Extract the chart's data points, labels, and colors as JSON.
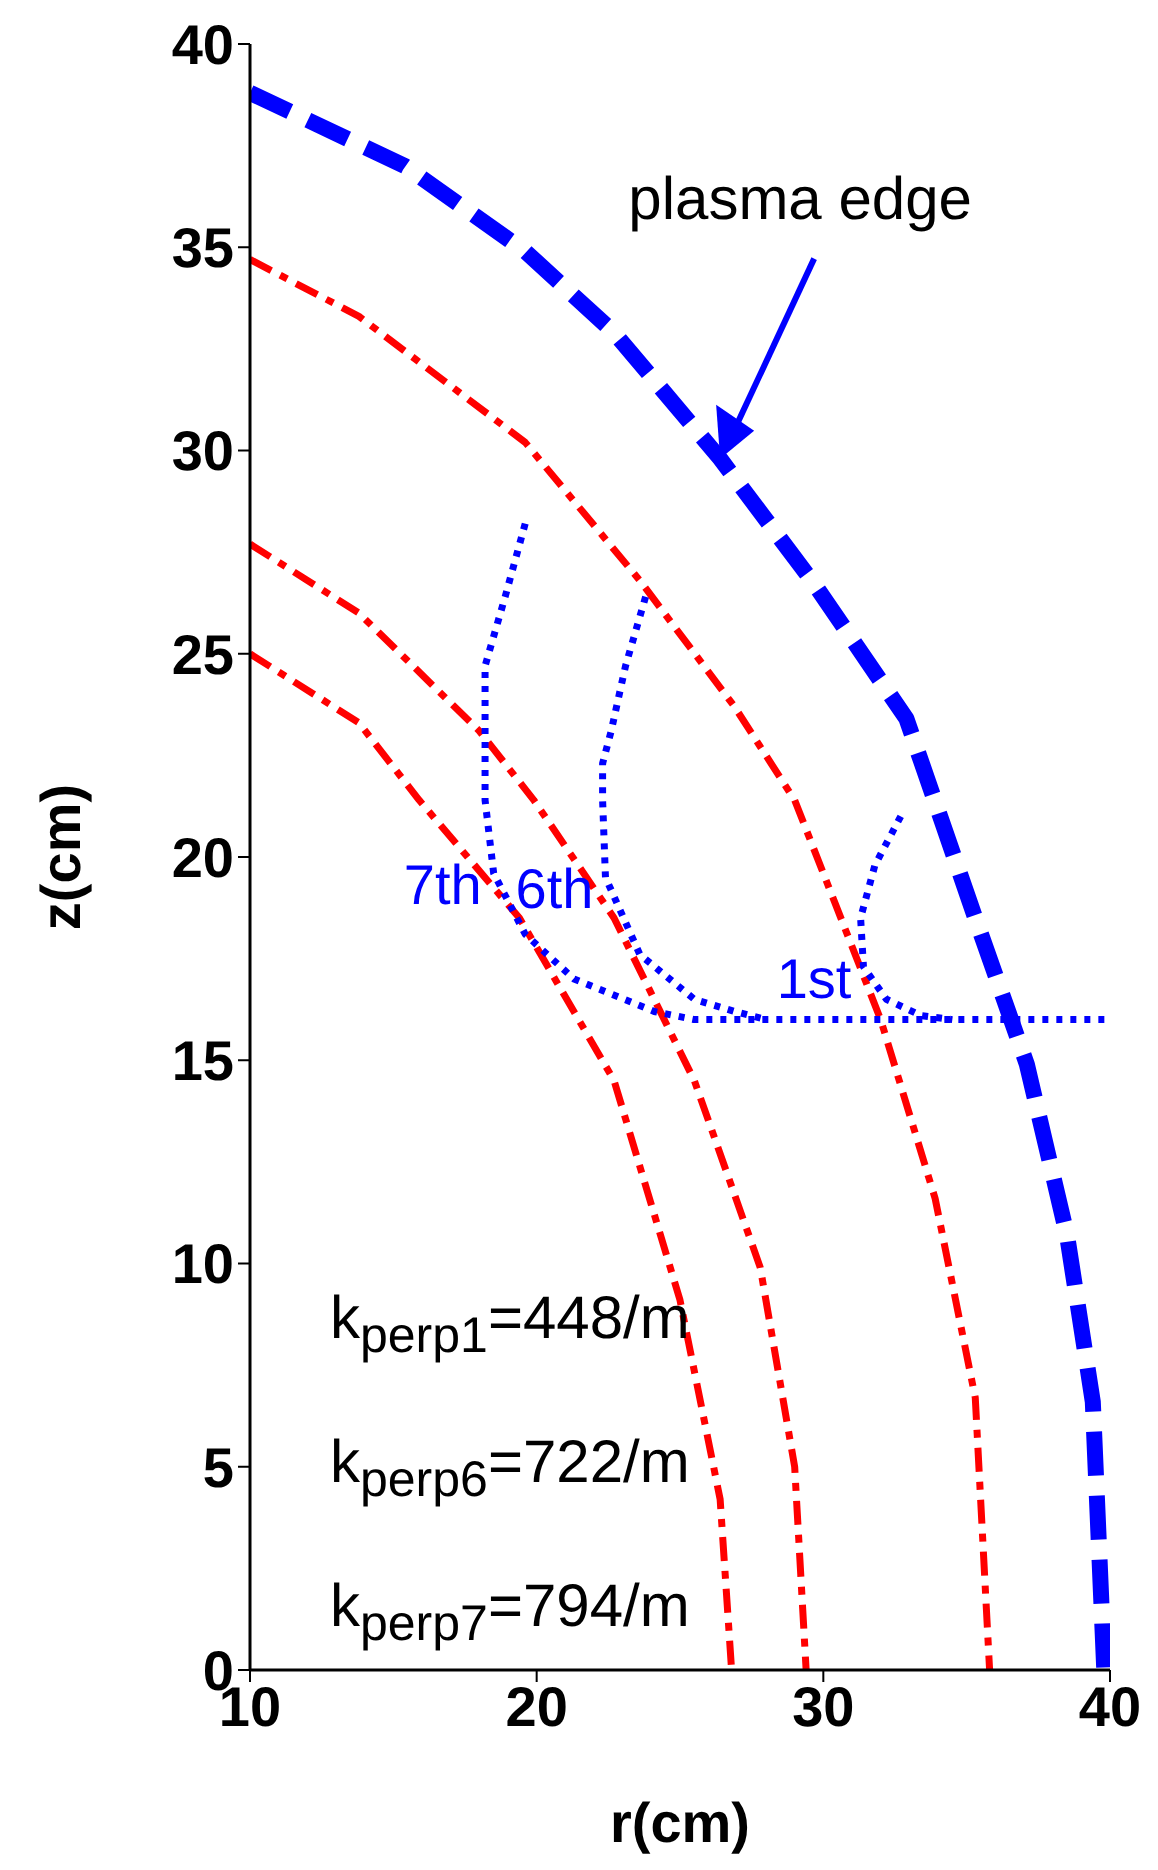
{
  "chart_data": {
    "type": "line",
    "xlabel": "r(cm)",
    "ylabel": "z(cm)",
    "xlim": [
      10,
      40
    ],
    "xticks": [
      10,
      20,
      30,
      40
    ],
    "ylim": [
      0,
      40
    ],
    "yticks": [
      0,
      5,
      10,
      15,
      20,
      25,
      30,
      35,
      40
    ],
    "series": [
      {
        "name": "plasma edge",
        "color": "#0000ff",
        "line_style": "dashed",
        "x": [
          10,
          15.4,
          19.6,
          22.7,
          26.4,
          29.7,
          32.9,
          35.3,
          37.1,
          38.5,
          39.4,
          39.8
        ],
        "values": [
          38.8,
          37.0,
          34.9,
          32.9,
          29.8,
          26.7,
          23.4,
          18.5,
          14.9,
          10.7,
          6.6,
          0
        ]
      },
      {
        "color": "#ff0000",
        "line_style": "dashdot",
        "x": [
          10,
          13.8,
          19.6,
          23.6,
          26.9,
          29.0,
          32.0,
          33.9,
          35.3,
          35.8
        ],
        "values": [
          34.7,
          33.3,
          30.2,
          26.8,
          23.7,
          21.4,
          16.0,
          11.6,
          6.7,
          0
        ]
      },
      {
        "color": "#ff0000",
        "line_style": "dashdot",
        "x": [
          10,
          13.8,
          18.0,
          19.9,
          22.7,
          25.5,
          27.8,
          29.0,
          29.4
        ],
        "values": [
          27.7,
          26.0,
          23.1,
          21.4,
          18.5,
          14.5,
          9.9,
          5.0,
          0
        ]
      },
      {
        "color": "#ff0000",
        "line_style": "dashdot",
        "x": [
          10,
          13.8,
          15.9,
          19.4,
          22.7,
          25.0,
          26.4,
          26.8
        ],
        "values": [
          25.0,
          23.3,
          21.4,
          18.5,
          14.5,
          9.1,
          4.2,
          0
        ]
      },
      {
        "name": "7th",
        "color": "#0000ff",
        "line_style": "dotted",
        "x": [
          19.6,
          18.9,
          18.2,
          18.2,
          18.2,
          18.5,
          19.6,
          21.3,
          24.1,
          25.5,
          40
        ],
        "values": [
          28.2,
          26.4,
          24.7,
          23.1,
          21.4,
          19.6,
          18.1,
          17.0,
          16.2,
          16.0,
          16.0
        ]
      },
      {
        "name": "6th",
        "color": "#0000ff",
        "line_style": "dotted",
        "x": [
          23.8,
          23.1,
          22.6,
          22.3,
          22.3,
          22.4,
          23.6,
          25.5,
          26.9,
          28.0
        ],
        "values": [
          26.4,
          24.7,
          23.1,
          22.3,
          21.4,
          19.5,
          17.6,
          16.5,
          16.2,
          16.0
        ]
      },
      {
        "name": "1st",
        "color": "#0000ff",
        "line_style": "dotted",
        "x": [
          32.7,
          31.8,
          31.3,
          31.4,
          32.2,
          33.4,
          34.5
        ],
        "values": [
          21.0,
          19.8,
          18.5,
          17.3,
          16.5,
          16.1,
          16.0
        ]
      }
    ],
    "annotations": [
      "k$_{perp1}$=448/m",
      "k$_{perp6}$=722/m",
      "k$_{perp7}$=794/m"
    ]
  }
}
